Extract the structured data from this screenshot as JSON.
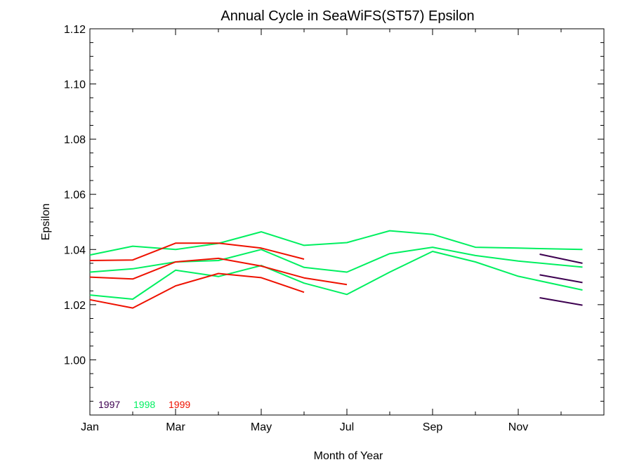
{
  "chart_data": {
    "type": "line",
    "title": "Annual Cycle in SeaWiFS(ST57) Epsilon",
    "xlabel": "Month of Year",
    "ylabel": "Epsilon",
    "xlim": [
      0,
      12
    ],
    "ylim": [
      0.98,
      1.12
    ],
    "x_ticks": [
      {
        "value": 0,
        "label": "Jan"
      },
      {
        "value": 2,
        "label": "Mar"
      },
      {
        "value": 4,
        "label": "May"
      },
      {
        "value": 6,
        "label": "Jul"
      },
      {
        "value": 8,
        "label": "Sep"
      },
      {
        "value": 10,
        "label": "Nov"
      }
    ],
    "y_ticks": [
      {
        "value": 1.0,
        "label": "1.00"
      },
      {
        "value": 1.02,
        "label": "1.02"
      },
      {
        "value": 1.04,
        "label": "1.04"
      },
      {
        "value": 1.06,
        "label": "1.06"
      },
      {
        "value": 1.08,
        "label": "1.08"
      },
      {
        "value": 1.1,
        "label": "1.10"
      },
      {
        "value": 1.12,
        "label": "1.12"
      }
    ],
    "grid": false,
    "legend": {
      "position": "bottom-left",
      "entries": [
        {
          "name": "1997",
          "color": "#3d0050"
        },
        {
          "name": "1998",
          "color": "#00f060"
        },
        {
          "name": "1999",
          "color": "#ee1100"
        }
      ]
    },
    "series": [
      {
        "name": "1997",
        "color": "#3d0050",
        "x": [
          10.5,
          11.5
        ],
        "y": [
          1.0383,
          1.035
        ]
      },
      {
        "name": "1997",
        "color": "#3d0050",
        "x": [
          10.5,
          11.5
        ],
        "y": [
          1.0308,
          1.028
        ]
      },
      {
        "name": "1997",
        "color": "#3d0050",
        "x": [
          10.5,
          11.5
        ],
        "y": [
          1.0225,
          1.0198
        ]
      },
      {
        "name": "1998",
        "color": "#00f060",
        "x": [
          0,
          1,
          2,
          3,
          4,
          5,
          6,
          7,
          8,
          9,
          10,
          11.5
        ],
        "y": [
          1.038,
          1.0412,
          1.04,
          1.0422,
          1.0464,
          1.0415,
          1.0425,
          1.0468,
          1.0455,
          1.0408,
          1.0405,
          1.04
        ]
      },
      {
        "name": "1998",
        "color": "#00f060",
        "x": [
          0,
          1,
          2,
          3,
          4,
          5,
          6,
          7,
          8,
          9,
          10,
          11.5
        ],
        "y": [
          1.0318,
          1.033,
          1.0355,
          1.036,
          1.04,
          1.0335,
          1.0318,
          1.0385,
          1.0408,
          1.0378,
          1.0358,
          1.0336
        ]
      },
      {
        "name": "1998",
        "color": "#00f060",
        "x": [
          0,
          1,
          2,
          3,
          4,
          5,
          6,
          7,
          8,
          9,
          10,
          11.5
        ],
        "y": [
          1.0235,
          1.022,
          1.0325,
          1.0302,
          1.0342,
          1.0278,
          1.0237,
          1.0318,
          1.0393,
          1.0355,
          1.0303,
          1.0253
        ]
      },
      {
        "name": "1999",
        "color": "#ee1100",
        "x": [
          0,
          1,
          2,
          3,
          4,
          5
        ],
        "y": [
          1.036,
          1.0362,
          1.0423,
          1.0423,
          1.0405,
          1.0365
        ]
      },
      {
        "name": "1999",
        "color": "#ee1100",
        "x": [
          0,
          1,
          2,
          3,
          4,
          5,
          6
        ],
        "y": [
          1.03,
          1.0293,
          1.0355,
          1.0368,
          1.034,
          1.0297,
          1.0273
        ]
      },
      {
        "name": "1999",
        "color": "#ee1100",
        "x": [
          0,
          1,
          2,
          3,
          4,
          5
        ],
        "y": [
          1.0218,
          1.0188,
          1.0268,
          1.0313,
          1.0298,
          1.0245
        ]
      }
    ]
  }
}
